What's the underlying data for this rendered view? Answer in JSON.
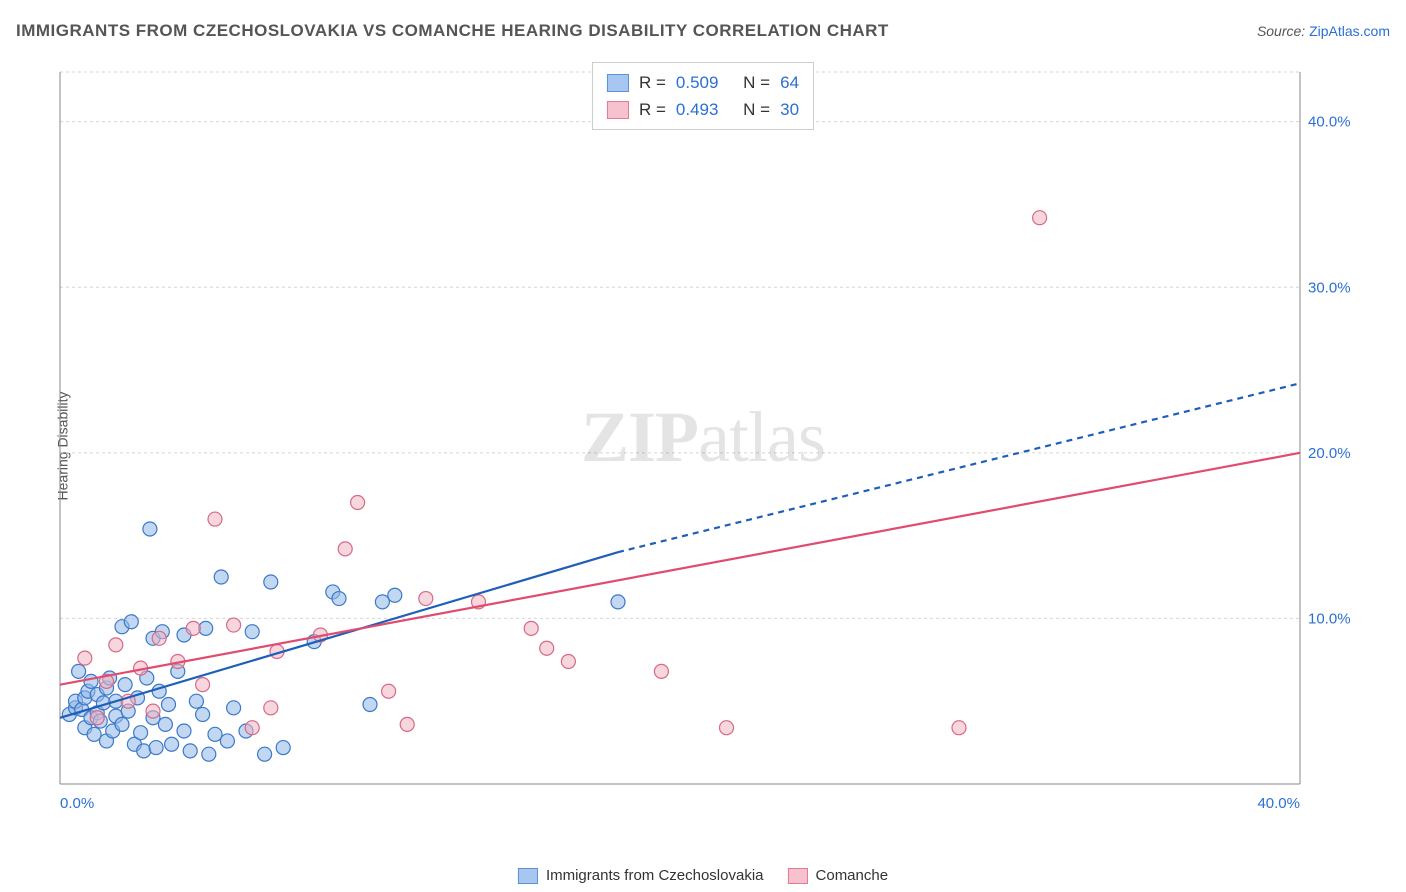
{
  "title": "IMMIGRANTS FROM CZECHOSLOVAKIA VS COMANCHE HEARING DISABILITY CORRELATION CHART",
  "source_label": "Source:",
  "source_name": "ZipAtlas.com",
  "y_axis_title": "Hearing Disability",
  "watermark": {
    "bold": "ZIP",
    "rest": "atlas"
  },
  "stats_legend": [
    {
      "r_label": "R =",
      "r_value": "0.509",
      "n_label": "N =",
      "n_value": "64",
      "fill": "#a7c7f0",
      "stroke": "#5b92d6"
    },
    {
      "r_label": "R =",
      "r_value": "0.493",
      "n_label": "N =",
      "n_value": "30",
      "fill": "#f5c2cd",
      "stroke": "#e37992"
    }
  ],
  "series_legend": [
    {
      "label": "Immigrants from Czechoslovakia",
      "fill": "#a7c7f0",
      "stroke": "#5b92d6"
    },
    {
      "label": "Comanche",
      "fill": "#f5c2cd",
      "stroke": "#e37992"
    }
  ],
  "chart": {
    "type": "scatter",
    "xlim": [
      0,
      40
    ],
    "ylim": [
      0,
      43
    ],
    "x_ticks": [
      {
        "v": 0,
        "label": "0.0%"
      },
      {
        "v": 40,
        "label": "40.0%"
      }
    ],
    "y_ticks": [
      {
        "v": 10,
        "label": "10.0%"
      },
      {
        "v": 20,
        "label": "20.0%"
      },
      {
        "v": 30,
        "label": "30.0%"
      },
      {
        "v": 40,
        "label": "40.0%"
      }
    ],
    "grid_color": "#d5d5d5",
    "axis_color": "#888888",
    "background_color": "#ffffff",
    "marker_radius": 7,
    "marker_opacity": 0.55,
    "series": [
      {
        "name": "czechoslovakia",
        "marker_fill": "#8fb8e8",
        "marker_stroke": "#3d78c9",
        "trend_color": "#1f5fb8",
        "trend_width": 2.2,
        "trend_solid": {
          "x1": 0,
          "y1": 4.0,
          "x2": 18,
          "y2": 14.0
        },
        "trend_dash": {
          "x1": 18,
          "y1": 14.0,
          "x2": 40,
          "y2": 24.2
        },
        "points": [
          [
            0.3,
            4.2
          ],
          [
            0.5,
            4.6
          ],
          [
            0.5,
            5.0
          ],
          [
            0.7,
            4.5
          ],
          [
            0.8,
            5.2
          ],
          [
            0.8,
            3.4
          ],
          [
            0.9,
            5.6
          ],
          [
            1.0,
            4.0
          ],
          [
            1.0,
            6.2
          ],
          [
            1.1,
            3.0
          ],
          [
            1.2,
            4.3
          ],
          [
            1.2,
            5.4
          ],
          [
            1.3,
            3.8
          ],
          [
            1.4,
            4.9
          ],
          [
            1.5,
            5.8
          ],
          [
            1.5,
            2.6
          ],
          [
            1.6,
            6.4
          ],
          [
            1.7,
            3.2
          ],
          [
            1.8,
            4.1
          ],
          [
            1.8,
            5.0
          ],
          [
            2.0,
            3.6
          ],
          [
            2.0,
            9.5
          ],
          [
            2.1,
            6.0
          ],
          [
            2.2,
            4.4
          ],
          [
            2.3,
            9.8
          ],
          [
            2.4,
            2.4
          ],
          [
            2.5,
            5.2
          ],
          [
            2.6,
            3.1
          ],
          [
            2.7,
            2.0
          ],
          [
            2.8,
            6.4
          ],
          [
            2.9,
            15.4
          ],
          [
            3.0,
            4.0
          ],
          [
            3.0,
            8.8
          ],
          [
            3.1,
            2.2
          ],
          [
            3.2,
            5.6
          ],
          [
            3.3,
            9.2
          ],
          [
            3.4,
            3.6
          ],
          [
            3.5,
            4.8
          ],
          [
            3.6,
            2.4
          ],
          [
            3.8,
            6.8
          ],
          [
            4.0,
            3.2
          ],
          [
            4.0,
            9.0
          ],
          [
            4.2,
            2.0
          ],
          [
            4.4,
            5.0
          ],
          [
            4.6,
            4.2
          ],
          [
            4.7,
            9.4
          ],
          [
            4.8,
            1.8
          ],
          [
            5.0,
            3.0
          ],
          [
            5.2,
            12.5
          ],
          [
            5.4,
            2.6
          ],
          [
            5.6,
            4.6
          ],
          [
            6.0,
            3.2
          ],
          [
            6.2,
            9.2
          ],
          [
            6.6,
            1.8
          ],
          [
            6.8,
            12.2
          ],
          [
            7.2,
            2.2
          ],
          [
            8.2,
            8.6
          ],
          [
            8.8,
            11.6
          ],
          [
            9.0,
            11.2
          ],
          [
            10.0,
            4.8
          ],
          [
            10.4,
            11.0
          ],
          [
            10.8,
            11.4
          ],
          [
            18.0,
            11.0
          ],
          [
            0.6,
            6.8
          ]
        ]
      },
      {
        "name": "comanche",
        "marker_fill": "#f1b4c2",
        "marker_stroke": "#d76a86",
        "trend_color": "#e14b6e",
        "trend_width": 2.2,
        "trend_solid": {
          "x1": 0,
          "y1": 6.0,
          "x2": 40,
          "y2": 20.0
        },
        "trend_dash": null,
        "points": [
          [
            0.8,
            7.6
          ],
          [
            1.2,
            4.0
          ],
          [
            1.5,
            6.2
          ],
          [
            1.8,
            8.4
          ],
          [
            2.2,
            5.0
          ],
          [
            2.6,
            7.0
          ],
          [
            3.0,
            4.4
          ],
          [
            3.2,
            8.8
          ],
          [
            3.8,
            7.4
          ],
          [
            4.3,
            9.4
          ],
          [
            4.6,
            6.0
          ],
          [
            5.0,
            16.0
          ],
          [
            5.6,
            9.6
          ],
          [
            6.2,
            3.4
          ],
          [
            6.8,
            4.6
          ],
          [
            7.0,
            8.0
          ],
          [
            8.4,
            9.0
          ],
          [
            9.2,
            14.2
          ],
          [
            9.6,
            17.0
          ],
          [
            10.6,
            5.6
          ],
          [
            11.2,
            3.6
          ],
          [
            11.8,
            11.2
          ],
          [
            13.5,
            11.0
          ],
          [
            15.7,
            8.2
          ],
          [
            15.2,
            9.4
          ],
          [
            16.4,
            7.4
          ],
          [
            19.4,
            6.8
          ],
          [
            29.0,
            3.4
          ],
          [
            31.6,
            34.2
          ],
          [
            21.5,
            3.4
          ]
        ]
      }
    ]
  }
}
